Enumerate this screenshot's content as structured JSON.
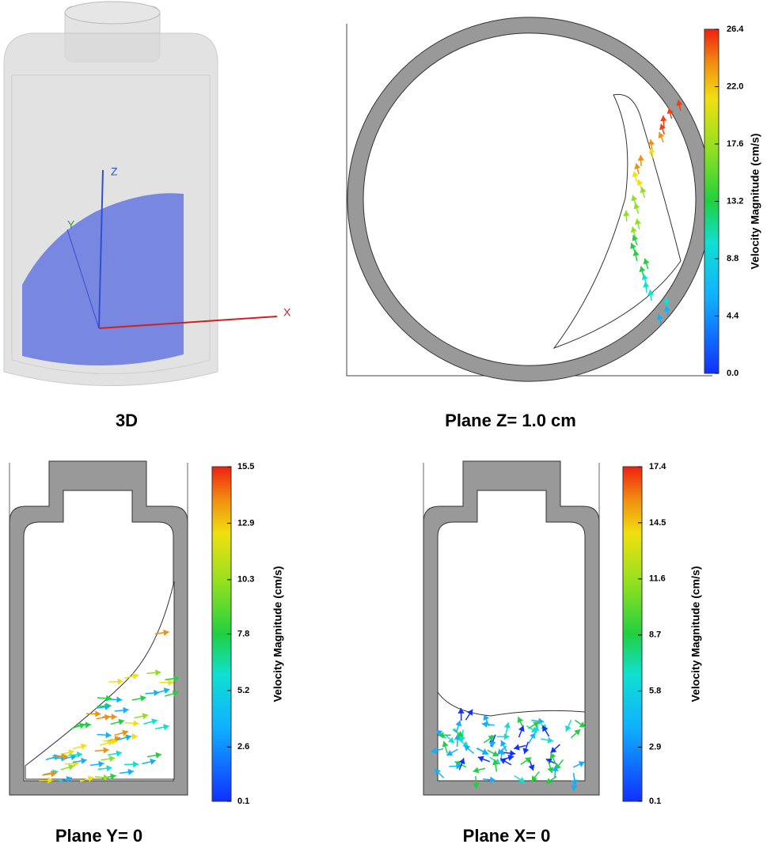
{
  "panels": [
    {
      "caption": "3D",
      "axis_labels": [
        "Z",
        "Y",
        "X"
      ]
    },
    {
      "caption": "Plane Z= 1.0 cm",
      "colorbar": {
        "label": "Velocity Magnitude (cm/s)",
        "ticks": [
          {
            "value": 26.4,
            "label": "26.4"
          },
          {
            "value": 22,
            "label": "22.0"
          },
          {
            "value": 17.6,
            "label": "17.6"
          },
          {
            "value": 13.2,
            "label": "13.2"
          },
          {
            "value": 8.8,
            "label": "8.8"
          },
          {
            "value": 4.4,
            "label": "4.4"
          },
          {
            "value": 0,
            "label": "0.0"
          }
        ]
      }
    },
    {
      "caption": "Plane Y= 0",
      "colorbar": {
        "label": "Velocity Magnitude (cm/s)",
        "ticks": [
          15.5,
          12.9,
          10.3,
          7.8,
          5.2,
          2.6,
          0.1
        ]
      }
    },
    {
      "caption": "Plane X= 0",
      "colorbar": {
        "label": "Velocity Magnitude (cm/s)",
        "ticks": [
          17.4,
          14.5,
          11.6,
          8.7,
          5.8,
          2.9,
          0.1
        ]
      }
    }
  ]
}
